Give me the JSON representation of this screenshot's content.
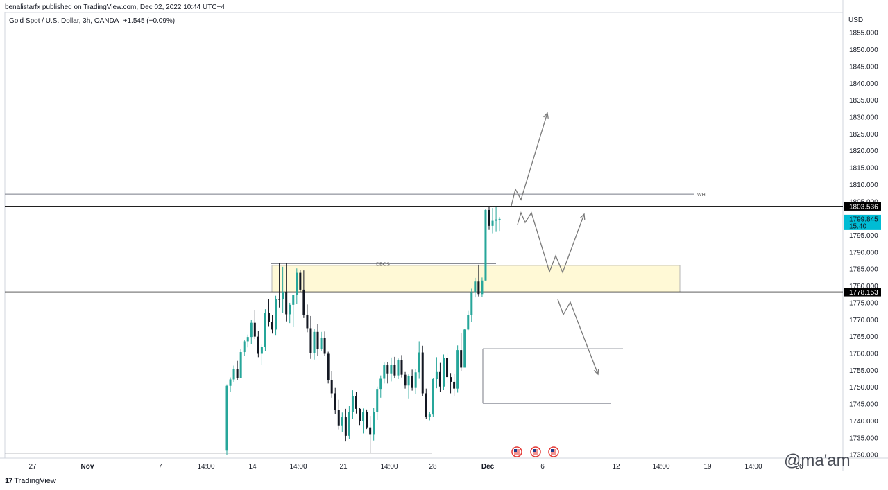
{
  "header": {
    "publisher": "benalistarfx published on TradingView.com, Dec 02, 2022 10:44 UTC+4",
    "symbol": "Gold Spot / U.S. Dollar, 3h, OANDA",
    "change": "+1.545 (+0.09%)"
  },
  "footer": {
    "brand": "TradingView",
    "watermark": "@ma'am"
  },
  "colors": {
    "bull": "#26a69a",
    "bear": "#131722",
    "zone": "#fff9d6",
    "current_price_bg": "#00bcd4"
  },
  "chart_data": {
    "type": "candlestick",
    "currency": "USD",
    "ylim": [
      1729,
      1861
    ],
    "yticks": [
      "1855.000",
      "1850.000",
      "1845.000",
      "1840.000",
      "1835.000",
      "1830.000",
      "1825.000",
      "1820.000",
      "1815.000",
      "1810.000",
      "1805.000",
      "1795.000",
      "1790.000",
      "1785.000",
      "1780.000",
      "1775.000",
      "1770.000",
      "1765.000",
      "1760.000",
      "1755.000",
      "1750.000",
      "1745.000",
      "1740.000",
      "1735.000",
      "1730.000"
    ],
    "xticks": [
      "27",
      "Nov",
      "7",
      "14:00",
      "14",
      "14:00",
      "21",
      "14:00",
      "28",
      "Dec",
      "6",
      "12",
      "14:00",
      "19",
      "14:00",
      "26"
    ],
    "xtick_bold": [
      false,
      true,
      false,
      false,
      false,
      false,
      false,
      false,
      false,
      true,
      false,
      false,
      false,
      false,
      false,
      false
    ],
    "price_labels": {
      "upper_level": "1803.536",
      "current_price": "1799.845",
      "countdown": "15:40",
      "lower_level": "1778.153"
    },
    "annotations": {
      "dbos": "DBOS",
      "wh": "WH"
    },
    "levels": {
      "upper": 1803.536,
      "lower": 1778.153,
      "wh": 1807.2,
      "bottom": 1730.5
    },
    "zone": {
      "top": 1786.1,
      "bottom": 1778.153
    },
    "candles": [
      [
        1731.2,
        1750.8,
        1730.0,
        1750.4
      ],
      [
        1750.4,
        1752.9,
        1748.5,
        1752.3
      ],
      [
        1752.3,
        1756.4,
        1751.6,
        1755.4
      ],
      [
        1755.4,
        1757.8,
        1752.0,
        1752.8
      ],
      [
        1752.8,
        1761.4,
        1752.8,
        1760.4
      ],
      [
        1760.4,
        1764.1,
        1759.2,
        1763.6
      ],
      [
        1763.6,
        1765.6,
        1761.8,
        1764.9
      ],
      [
        1764.9,
        1770.0,
        1762.7,
        1769.1
      ],
      [
        1769.1,
        1772.9,
        1764.3,
        1765.0
      ],
      [
        1765.0,
        1766.7,
        1758.9,
        1759.9
      ],
      [
        1759.9,
        1762.6,
        1756.7,
        1761.9
      ],
      [
        1761.9,
        1773.1,
        1760.8,
        1772.0
      ],
      [
        1772.0,
        1776.1,
        1767.9,
        1769.4
      ],
      [
        1769.4,
        1771.3,
        1765.9,
        1767.1
      ],
      [
        1767.1,
        1777.1,
        1765.3,
        1776.1
      ],
      [
        1776.1,
        1786.8,
        1773.6,
        1776.0
      ],
      [
        1776.0,
        1785.7,
        1772.0,
        1778.1
      ],
      [
        1778.1,
        1786.8,
        1769.5,
        1771.6
      ],
      [
        1771.6,
        1775.0,
        1769.0,
        1774.4
      ],
      [
        1774.4,
        1776.7,
        1767.8,
        1777.4
      ],
      [
        1777.4,
        1785.2,
        1774.7,
        1783.9
      ],
      [
        1783.9,
        1784.7,
        1778.2,
        1778.9
      ],
      [
        1778.9,
        1784.6,
        1770.5,
        1771.5
      ],
      [
        1771.5,
        1774.5,
        1766.3,
        1767.5
      ],
      [
        1767.5,
        1771.1,
        1758.4,
        1760.0
      ],
      [
        1760.0,
        1767.4,
        1758.2,
        1766.4
      ],
      [
        1766.4,
        1768.8,
        1759.3,
        1761.4
      ],
      [
        1761.4,
        1766.4,
        1760.7,
        1764.6
      ],
      [
        1764.6,
        1766.5,
        1759.2,
        1759.9
      ],
      [
        1759.9,
        1760.5,
        1751.1,
        1752.1
      ],
      [
        1752.1,
        1754.7,
        1746.9,
        1748.2
      ],
      [
        1748.2,
        1749.8,
        1742.1,
        1743.3
      ],
      [
        1743.3,
        1746.3,
        1737.5,
        1738.7
      ],
      [
        1738.7,
        1742.5,
        1736.6,
        1741.1
      ],
      [
        1741.1,
        1743.6,
        1733.9,
        1735.6
      ],
      [
        1735.6,
        1744.4,
        1734.6,
        1742.7
      ],
      [
        1742.7,
        1749.1,
        1740.7,
        1747.3
      ],
      [
        1747.3,
        1748.7,
        1742.2,
        1743.6
      ],
      [
        1743.6,
        1743.9,
        1738.8,
        1740.0
      ],
      [
        1740.0,
        1743.7,
        1736.3,
        1742.6
      ],
      [
        1742.6,
        1743.4,
        1737.6,
        1738.1
      ],
      [
        1738.1,
        1741.5,
        1730.5,
        1736.1
      ],
      [
        1736.1,
        1743.8,
        1734.2,
        1742.7
      ],
      [
        1742.7,
        1750.2,
        1740.3,
        1749.5
      ],
      [
        1749.5,
        1753.5,
        1746.9,
        1752.5
      ],
      [
        1752.5,
        1757.3,
        1751.1,
        1756.5
      ],
      [
        1756.5,
        1757.5,
        1751.1,
        1754.1
      ],
      [
        1754.1,
        1758.8,
        1751.7,
        1756.6
      ],
      [
        1756.6,
        1759.0,
        1752.8,
        1753.5
      ],
      [
        1753.5,
        1758.5,
        1752.4,
        1758.0
      ],
      [
        1758.0,
        1759.5,
        1752.9,
        1753.7
      ],
      [
        1753.7,
        1754.5,
        1749.6,
        1750.5
      ],
      [
        1750.5,
        1753.8,
        1746.7,
        1753.3
      ],
      [
        1753.3,
        1755.2,
        1749.0,
        1749.8
      ],
      [
        1749.8,
        1755.3,
        1748.0,
        1754.4
      ],
      [
        1754.4,
        1763.6,
        1752.5,
        1760.3
      ],
      [
        1760.3,
        1762.3,
        1747.4,
        1748.2
      ],
      [
        1748.2,
        1749.6,
        1740.5,
        1741.2
      ],
      [
        1741.2,
        1742.7,
        1740.2,
        1741.9
      ],
      [
        1741.9,
        1752.7,
        1741.2,
        1752.4
      ],
      [
        1752.4,
        1758.9,
        1749.7,
        1754.5
      ],
      [
        1754.5,
        1757.2,
        1748.5,
        1750.2
      ],
      [
        1750.2,
        1759.7,
        1749.2,
        1758.7
      ],
      [
        1758.7,
        1760.1,
        1751.2,
        1753.0
      ],
      [
        1753.0,
        1754.2,
        1748.2,
        1751.6
      ],
      [
        1751.6,
        1753.9,
        1747.4,
        1749.6
      ],
      [
        1749.6,
        1762.4,
        1748.4,
        1761.0
      ],
      [
        1761.0,
        1766.1,
        1754.7,
        1755.8
      ],
      [
        1755.8,
        1767.3,
        1755.8,
        1767.1
      ],
      [
        1767.1,
        1772.6,
        1766.9,
        1771.3
      ],
      [
        1771.3,
        1779.2,
        1769.3,
        1778.0
      ],
      [
        1778.0,
        1782.4,
        1776.6,
        1781.3
      ],
      [
        1781.3,
        1786.3,
        1776.9,
        1777.6
      ],
      [
        1777.6,
        1782.5,
        1776.7,
        1781.6
      ],
      [
        1781.6,
        1802.8,
        1781.6,
        1802.5
      ],
      [
        1802.5,
        1803.5,
        1796.6,
        1797.8
      ],
      [
        1797.8,
        1803.1,
        1795.6,
        1799.3
      ],
      [
        1799.3,
        1803.5,
        1796.0,
        1799.7
      ],
      [
        1799.7,
        1800.4,
        1796.1,
        1799.845
      ]
    ]
  }
}
